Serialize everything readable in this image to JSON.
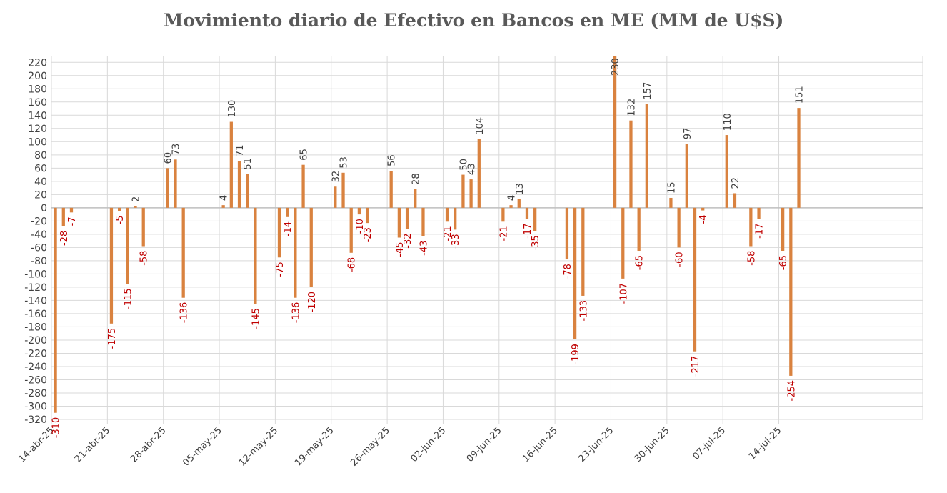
{
  "chart_data": {
    "type": "bar",
    "title": "Movimiento diario de Efectivo en Bancos en ME (MM de U$S)",
    "xlabel": "",
    "ylabel": "",
    "ylim": [
      -320,
      230
    ],
    "yticks": [
      220,
      200,
      180,
      160,
      140,
      120,
      100,
      80,
      60,
      40,
      20,
      0,
      -20,
      -40,
      -60,
      -80,
      -100,
      -120,
      -140,
      -160,
      -180,
      -200,
      -220,
      -240,
      -260,
      -280,
      -300,
      -320
    ],
    "grid": true,
    "legend": "none",
    "x_tick_labels": [
      "14-abr-25",
      "21-abr-25",
      "28-abr-25",
      "05-may-25",
      "12-may-25",
      "19-may-25",
      "26-may-25",
      "02-jun-25",
      "09-jun-25",
      "16-jun-25",
      "23-jun-25",
      "30-jun-25",
      "07-jul-25",
      "14-jul-25"
    ],
    "x_start": "2025-04-14",
    "x_end": "2025-07-31",
    "positive_label_color": "#404040",
    "negative_label_color": "#c00000",
    "bar_color": "#d9823f",
    "points": [
      {
        "date": "2025-04-14",
        "value": -310
      },
      {
        "date": "2025-04-15",
        "value": -28
      },
      {
        "date": "2025-04-16",
        "value": -7
      },
      {
        "date": "2025-04-21",
        "value": -175
      },
      {
        "date": "2025-04-22",
        "value": -5
      },
      {
        "date": "2025-04-23",
        "value": -115
      },
      {
        "date": "2025-04-24",
        "value": 2
      },
      {
        "date": "2025-04-25",
        "value": -58
      },
      {
        "date": "2025-04-28",
        "value": 60
      },
      {
        "date": "2025-04-29",
        "value": 73
      },
      {
        "date": "2025-04-30",
        "value": -136
      },
      {
        "date": "2025-05-05",
        "value": 4
      },
      {
        "date": "2025-05-06",
        "value": 130
      },
      {
        "date": "2025-05-07",
        "value": 71
      },
      {
        "date": "2025-05-08",
        "value": 51
      },
      {
        "date": "2025-05-09",
        "value": -145
      },
      {
        "date": "2025-05-12",
        "value": -75
      },
      {
        "date": "2025-05-13",
        "value": -14
      },
      {
        "date": "2025-05-14",
        "value": -136
      },
      {
        "date": "2025-05-15",
        "value": 65
      },
      {
        "date": "2025-05-16",
        "value": -120
      },
      {
        "date": "2025-05-19",
        "value": 32
      },
      {
        "date": "2025-05-20",
        "value": 53
      },
      {
        "date": "2025-05-21",
        "value": -68
      },
      {
        "date": "2025-05-22",
        "value": -10
      },
      {
        "date": "2025-05-23",
        "value": -23
      },
      {
        "date": "2025-05-26",
        "value": 56
      },
      {
        "date": "2025-05-27",
        "value": -45
      },
      {
        "date": "2025-05-28",
        "value": -32
      },
      {
        "date": "2025-05-29",
        "value": 28
      },
      {
        "date": "2025-05-30",
        "value": -43
      },
      {
        "date": "2025-06-02",
        "value": -21
      },
      {
        "date": "2025-06-03",
        "value": -33
      },
      {
        "date": "2025-06-04",
        "value": 50
      },
      {
        "date": "2025-06-05",
        "value": 43
      },
      {
        "date": "2025-06-06",
        "value": 104
      },
      {
        "date": "2025-06-09",
        "value": -21
      },
      {
        "date": "2025-06-10",
        "value": 4
      },
      {
        "date": "2025-06-11",
        "value": 13
      },
      {
        "date": "2025-06-12",
        "value": -17
      },
      {
        "date": "2025-06-13",
        "value": -35
      },
      {
        "date": "2025-06-17",
        "value": -78
      },
      {
        "date": "2025-06-18",
        "value": -199
      },
      {
        "date": "2025-06-19",
        "value": -133
      },
      {
        "date": "2025-06-23",
        "value": 230
      },
      {
        "date": "2025-06-24",
        "value": -107
      },
      {
        "date": "2025-06-25",
        "value": 132
      },
      {
        "date": "2025-06-26",
        "value": -65
      },
      {
        "date": "2025-06-27",
        "value": 157
      },
      {
        "date": "2025-06-30",
        "value": 15
      },
      {
        "date": "2025-07-01",
        "value": -60
      },
      {
        "date": "2025-07-02",
        "value": 97
      },
      {
        "date": "2025-07-03",
        "value": -217
      },
      {
        "date": "2025-07-04",
        "value": -4
      },
      {
        "date": "2025-07-07",
        "value": 110
      },
      {
        "date": "2025-07-08",
        "value": 22
      },
      {
        "date": "2025-07-10",
        "value": -58
      },
      {
        "date": "2025-07-11",
        "value": -17
      },
      {
        "date": "2025-07-14",
        "value": -65
      },
      {
        "date": "2025-07-15",
        "value": -254
      },
      {
        "date": "2025-07-16",
        "value": 151
      }
    ]
  }
}
